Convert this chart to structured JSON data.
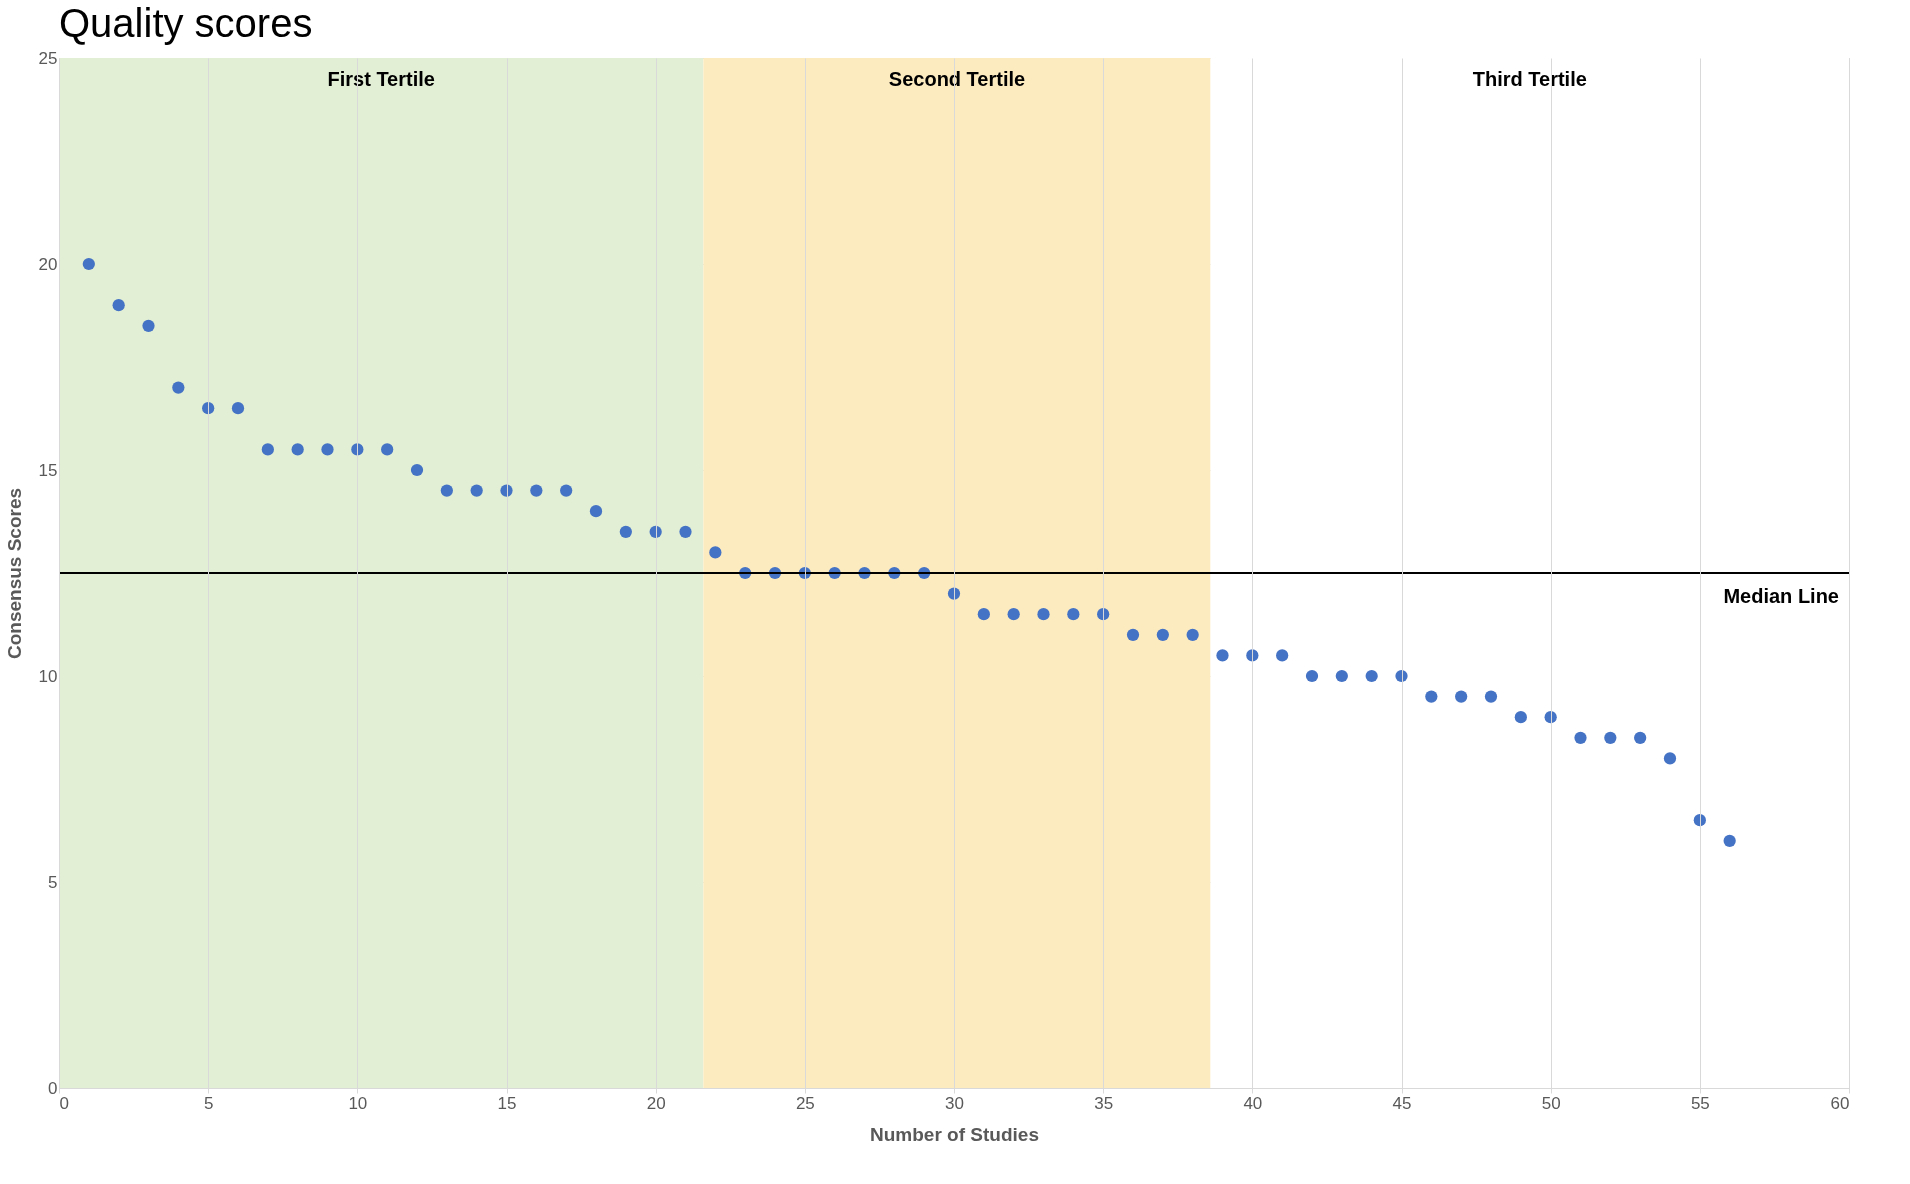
{
  "chart_data": {
    "type": "scatter",
    "title": "Quality scores",
    "xlabel": "Number of Studies",
    "ylabel": "Consensus Scores",
    "series": [
      {
        "color": "#4472c4",
        "x": [
          1,
          2,
          3,
          4,
          5,
          6,
          7,
          8,
          9,
          10,
          11,
          12,
          13,
          14,
          15,
          16,
          17,
          18,
          19,
          20,
          21,
          22,
          23,
          24,
          25,
          26,
          27,
          28,
          29,
          30,
          31,
          32,
          33,
          34,
          35,
          36,
          37,
          38,
          39,
          40,
          41,
          42,
          43,
          44,
          45,
          46,
          47,
          48,
          49,
          50,
          51,
          52,
          53,
          54,
          55,
          56
        ],
        "values": [
          20,
          19,
          18.5,
          17,
          16.5,
          16.5,
          15.5,
          15.5,
          15.5,
          15.5,
          15.5,
          15,
          14.5,
          14.5,
          14.5,
          14.5,
          14.5,
          14,
          13.5,
          13.5,
          13.5,
          13,
          12.5,
          12.5,
          12.5,
          12.5,
          12.5,
          12.5,
          12.5,
          12,
          11.5,
          11.5,
          11.5,
          11.5,
          11.5,
          11,
          11,
          11,
          10.5,
          10.5,
          10.5,
          10,
          10,
          10,
          10,
          9.5,
          9.5,
          9.5,
          9,
          9,
          8.5,
          8.5,
          8.5,
          8,
          6.5,
          6
        ]
      }
    ],
    "xlim": [
      0,
      60
    ],
    "xticks": [
      0,
      5,
      10,
      15,
      20,
      25,
      30,
      35,
      40,
      45,
      50,
      55,
      60
    ],
    "ylim": [
      0,
      25
    ],
    "yticks": [
      0,
      5,
      10,
      15,
      20,
      25
    ],
    "bands": [
      {
        "axis": "x",
        "from": 0,
        "to": 21.6,
        "label": "First Tertile",
        "color": "#e2efd5"
      },
      {
        "axis": "x",
        "from": 21.6,
        "to": 38.6,
        "label": "Second Tertile",
        "color": "#fdebc0"
      },
      {
        "axis": "x",
        "from": 38.6,
        "to": 60,
        "label": "Third Tertile",
        "color": "#ffffff"
      }
    ],
    "ref_lines": [
      {
        "axis": "y",
        "value": 12.5,
        "label": "Median Line",
        "color": "#000000"
      }
    ],
    "grid": true,
    "marker": "circle"
  }
}
